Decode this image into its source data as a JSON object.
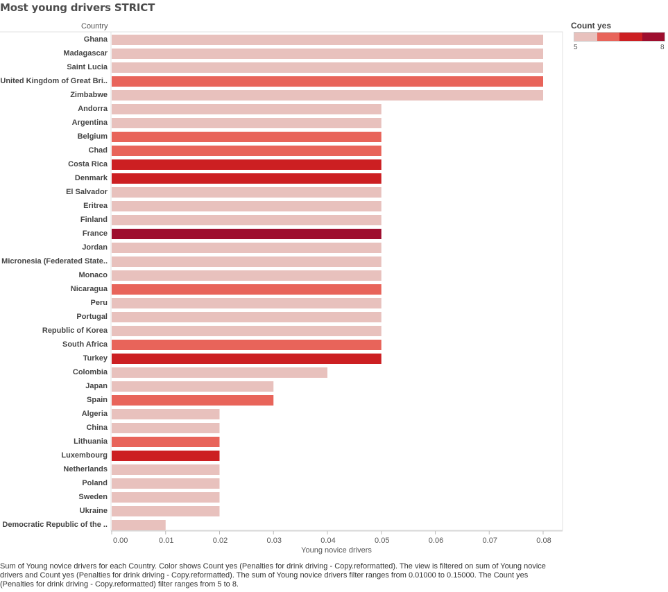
{
  "title": "Most young drivers STRICT",
  "row_header": "Country",
  "legend": {
    "title": "Count yes",
    "min_label": "5",
    "max_label": "8",
    "colors": [
      "#e8c1bd",
      "#e8645a",
      "#cc1f22",
      "#9e0e2e"
    ]
  },
  "caption": "Sum of Young novice drivers for each Country.  Color shows Count yes (Penalties for drink driving - Copy.reformatted). The view is filtered on sum of Young novice drivers and Count yes (Penalties for drink driving - Copy.reformatted). The sum of Young novice drivers filter ranges from 0.01000 to 0.15000. The Count yes (Penalties for drink driving - Copy.reformatted) filter ranges from 5 to 8.",
  "chart_data": {
    "type": "bar",
    "orientation": "horizontal",
    "xlabel": "Young novice drivers",
    "xlim": [
      0,
      0.0836
    ],
    "xticks": [
      "0.00",
      "0.01",
      "0.02",
      "0.03",
      "0.04",
      "0.05",
      "0.06",
      "0.07",
      "0.08"
    ],
    "tick_values": [
      0,
      0.01,
      0.02,
      0.03,
      0.04,
      0.05,
      0.06,
      0.07,
      0.08
    ],
    "grid": false,
    "color_scale": {
      "5": "#e8c1bd",
      "6": "#e8645a",
      "7": "#cc1f22",
      "8": "#9e0e2e"
    },
    "categories": [
      "Ghana",
      "Madagascar",
      "Saint Lucia",
      "United Kingdom of Great Bri..",
      "Zimbabwe",
      "Andorra",
      "Argentina",
      "Belgium",
      "Chad",
      "Costa Rica",
      "Denmark",
      "El Salvador",
      "Eritrea",
      "Finland",
      "France",
      "Jordan",
      "Micronesia (Federated State..",
      "Monaco",
      "Nicaragua",
      "Peru",
      "Portugal",
      "Republic of Korea",
      "South Africa",
      "Turkey",
      "Colombia",
      "Japan",
      "Spain",
      "Algeria",
      "China",
      "Lithuania",
      "Luxembourg",
      "Netherlands",
      "Poland",
      "Sweden",
      "Ukraine",
      "Democratic Republic of the .."
    ],
    "values": [
      0.08,
      0.08,
      0.08,
      0.08,
      0.08,
      0.05,
      0.05,
      0.05,
      0.05,
      0.05,
      0.05,
      0.05,
      0.05,
      0.05,
      0.05,
      0.05,
      0.05,
      0.05,
      0.05,
      0.05,
      0.05,
      0.05,
      0.05,
      0.05,
      0.04,
      0.03,
      0.03,
      0.02,
      0.02,
      0.02,
      0.02,
      0.02,
      0.02,
      0.02,
      0.02,
      0.01
    ],
    "count_yes": [
      5,
      5,
      5,
      6,
      5,
      5,
      5,
      6,
      6,
      7,
      7,
      5,
      5,
      5,
      8,
      5,
      5,
      5,
      6,
      5,
      5,
      5,
      6,
      7,
      5,
      5,
      6,
      5,
      5,
      6,
      7,
      5,
      5,
      5,
      5,
      5
    ]
  }
}
